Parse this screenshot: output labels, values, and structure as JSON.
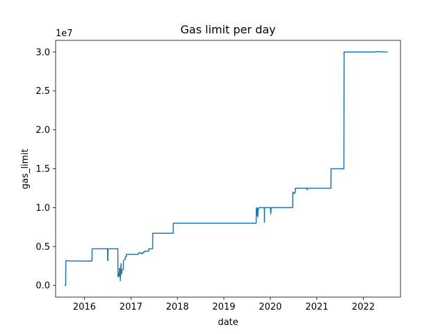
{
  "chart_data": {
    "type": "line",
    "title": "Gas limit per day",
    "xlabel": "date",
    "ylabel": "gas_limit",
    "y_offset_label": "1e7",
    "grid": false,
    "legend": "none",
    "xlim": [
      "2015-05-20",
      "2022-10-20"
    ],
    "ylim": [
      -1500000,
      31500000
    ],
    "x_ticks": [
      {
        "date": "2016-01-01",
        "label": "2016"
      },
      {
        "date": "2017-01-01",
        "label": "2017"
      },
      {
        "date": "2018-01-01",
        "label": "2018"
      },
      {
        "date": "2019-01-01",
        "label": "2019"
      },
      {
        "date": "2020-01-01",
        "label": "2020"
      },
      {
        "date": "2021-01-01",
        "label": "2021"
      },
      {
        "date": "2022-01-01",
        "label": "2022"
      }
    ],
    "y_ticks": [
      {
        "value": 0,
        "label": "0.0"
      },
      {
        "value": 5000000,
        "label": "0.5"
      },
      {
        "value": 10000000,
        "label": "1.0"
      },
      {
        "value": 15000000,
        "label": "1.5"
      },
      {
        "value": 20000000,
        "label": "2.0"
      },
      {
        "value": 25000000,
        "label": "2.5"
      },
      {
        "value": 30000000,
        "label": "3.0"
      }
    ],
    "series": [
      {
        "color": "#1f77b4",
        "x": [
          "2015-07-30",
          "2015-08-07",
          "2015-08-08",
          "2015-09-15",
          "2016-02-29",
          "2016-03-01",
          "2016-03-02",
          "2016-03-05",
          "2016-03-10",
          "2016-07-01",
          "2016-07-02",
          "2016-07-04",
          "2016-07-05",
          "2016-09-20",
          "2016-09-21",
          "2016-09-24",
          "2016-09-25",
          "2016-10-02",
          "2016-10-03",
          "2016-10-08",
          "2016-10-09",
          "2016-10-15",
          "2016-10-16",
          "2016-10-20",
          "2016-10-21",
          "2016-10-25",
          "2016-10-26",
          "2016-11-02",
          "2016-11-03",
          "2016-11-18",
          "2016-11-19",
          "2016-11-25",
          "2016-11-26",
          "2016-12-05",
          "2016-12-06",
          "2017-03-01",
          "2017-03-02",
          "2017-03-20",
          "2017-03-21",
          "2017-04-05",
          "2017-04-06",
          "2017-04-20",
          "2017-04-21",
          "2017-05-20",
          "2017-05-21",
          "2017-06-20",
          "2017-06-21",
          "2017-11-29",
          "2017-11-30",
          "2017-12-15",
          "2019-09-12",
          "2019-09-13",
          "2019-09-18",
          "2019-09-20",
          "2019-09-25",
          "2019-09-27",
          "2019-10-01",
          "2019-10-02",
          "2019-10-20",
          "2019-11-15",
          "2019-11-16",
          "2019-11-17",
          "2019-11-18",
          "2019-11-19",
          "2019-11-20",
          "2019-12-01",
          "2020-01-01",
          "2020-01-05",
          "2020-01-07",
          "2020-01-09",
          "2020-01-11",
          "2020-01-15",
          "2020-02-01",
          "2020-04-01",
          "2020-04-10",
          "2020-06-01",
          "2020-06-25",
          "2020-06-26",
          "2020-07-10",
          "2020-07-12",
          "2020-07-15",
          "2020-07-16",
          "2020-10-15",
          "2020-10-16",
          "2020-10-18",
          "2020-10-19",
          "2021-04-21",
          "2021-04-22",
          "2021-05-01",
          "2021-07-31",
          "2021-08-01",
          "2021-08-03",
          "2021-08-05",
          "2021-12-01",
          "2022-04-01",
          "2022-04-10",
          "2022-07-10"
        ],
        "y": [
          0,
          0,
          3200000,
          3140000,
          3140000,
          3800000,
          4700000,
          4700000,
          4712000,
          4712000,
          3200000,
          3200000,
          4712000,
          4712000,
          1100000,
          1600000,
          1200000,
          1200000,
          2200000,
          2200000,
          600000,
          2800000,
          1500000,
          1500000,
          2000000,
          2000000,
          2000000,
          2000000,
          3200000,
          3400000,
          3700000,
          3700000,
          4000000,
          4000000,
          4000000,
          4000000,
          4200000,
          4200000,
          4100000,
          4100000,
          4300000,
          4300000,
          4400000,
          4400000,
          4700000,
          4700000,
          6700000,
          6700000,
          7990000,
          8000000,
          8000000,
          10000000,
          9000000,
          9900000,
          8800000,
          9800000,
          9800000,
          10000000,
          10000000,
          10000000,
          8100000,
          9900000,
          9900000,
          10000000,
          10000000,
          10000000,
          10000000,
          9200000,
          9800000,
          10000000,
          10000000,
          10000000,
          10000000,
          10000000,
          10000000,
          10000000,
          10000000,
          12000000,
          11800000,
          12000000,
          12000000,
          12500000,
          12500000,
          12300000,
          12300000,
          12500000,
          12500000,
          15000000,
          15000000,
          15000000,
          15000000,
          30000000,
          30000000,
          30000000,
          30000000,
          30050000,
          30000000
        ]
      }
    ]
  }
}
